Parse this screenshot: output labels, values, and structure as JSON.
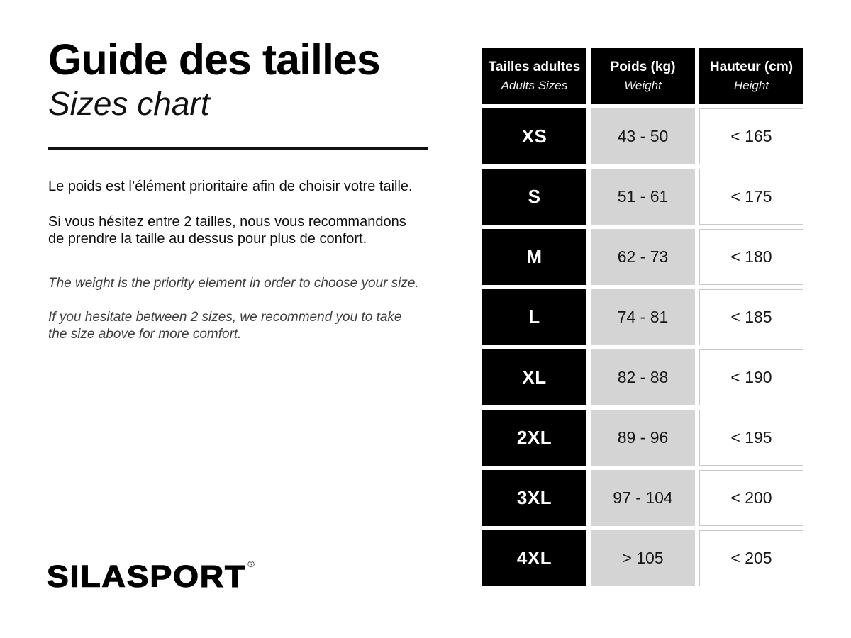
{
  "intro": {
    "title_fr": "Guide des tailles",
    "title_en": "Sizes chart",
    "fr_paragraphs": [
      "Le poids est l’élément prioritaire afin de choisir votre taille.",
      "Si vous hésitez entre 2 tailles, nous vous recommandons\nde prendre la taille au dessus pour plus de confort."
    ],
    "en_paragraphs": [
      "The weight is the priority element in order to choose your size.",
      "If you hesitate between 2 sizes, we recommend you to take\nthe size above for more comfort."
    ]
  },
  "brand": {
    "name": "SILASPORT",
    "registered_mark": "®"
  },
  "table": {
    "headers": [
      {
        "primary": "Tailles adultes",
        "secondary": "Adults Sizes"
      },
      {
        "primary": "Poids (kg)",
        "secondary": "Weight"
      },
      {
        "primary": "Hauteur (cm)",
        "secondary": "Height"
      }
    ],
    "rows": [
      {
        "size": "XS",
        "weight": "43 - 50",
        "height": "< 165"
      },
      {
        "size": "S",
        "weight": "51 - 61",
        "height": "< 175"
      },
      {
        "size": "M",
        "weight": "62 - 73",
        "height": "< 180"
      },
      {
        "size": "L",
        "weight": "74 - 81",
        "height": "< 185"
      },
      {
        "size": "XL",
        "weight": "82 - 88",
        "height": "< 190"
      },
      {
        "size": "2XL",
        "weight": "89 - 96",
        "height": "< 195"
      },
      {
        "size": "3XL",
        "weight": "97 - 104",
        "height": "< 200"
      },
      {
        "size": "4XL",
        "weight": "> 105",
        "height": "< 205"
      }
    ]
  },
  "colors": {
    "cell_black": "#000000",
    "cell_gray": "#d4d4d4",
    "height_cell_border": "#c9c9c9",
    "text_primary": "#0d0d0d",
    "text_english": "#3d3d3d"
  }
}
